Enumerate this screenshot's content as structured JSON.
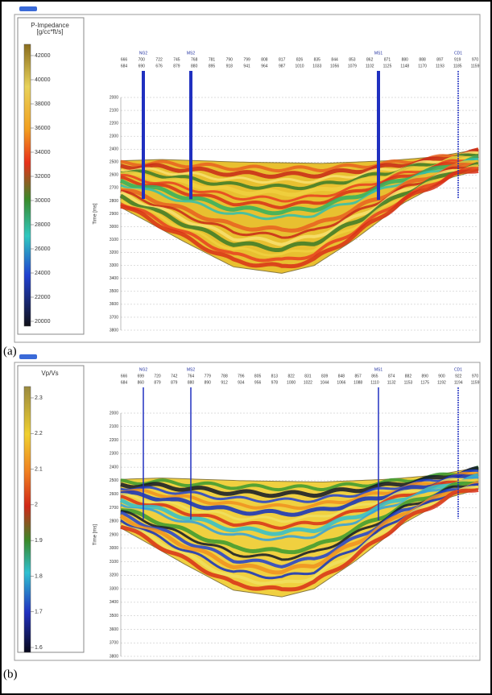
{
  "panels": [
    {
      "label": "(a)",
      "colorbar_title": "P-Impedance",
      "colorbar_unit": "[g/cc*ft/s]",
      "colorbar_ticks": [
        "42000",
        "40000",
        "38000",
        "36000",
        "34000",
        "32000",
        "30000",
        "28000",
        "26000",
        "24000",
        "22000",
        "20000"
      ],
      "time_axis_label": "Time [ms]",
      "time_ticks": [
        "2000",
        "2100",
        "2200",
        "2300",
        "2400",
        "2500",
        "2600",
        "2700",
        "2800",
        "2900",
        "3000",
        "3100",
        "3200",
        "3300",
        "3400",
        "3500",
        "3600",
        "3700",
        "3800"
      ],
      "wells": [
        "NG2",
        "MS2",
        "MS1",
        "CD1"
      ],
      "trace_row1": [
        "666",
        "700",
        "722",
        "745",
        "768",
        "781",
        "790",
        "799",
        "808",
        "817",
        "826",
        "835",
        "844",
        "853",
        "862",
        "871",
        "880",
        "888",
        "897",
        "919",
        "970"
      ],
      "trace_row2": [
        "684",
        "690",
        "676",
        "879",
        "880",
        "895",
        "918",
        "941",
        "964",
        "987",
        "1010",
        "1033",
        "1056",
        "1079",
        "1102",
        "1125",
        "1148",
        "1170",
        "1193",
        "1185",
        "1159"
      ]
    },
    {
      "label": "(b)",
      "colorbar_title": "Vp/Vs",
      "colorbar_unit": null,
      "colorbar_ticks": [
        "2.3",
        "2.2",
        "2.1",
        "2",
        "1.9",
        "1.8",
        "1.7",
        "1.6"
      ],
      "time_axis_label": "Time [ms]",
      "time_ticks": [
        "2000",
        "2100",
        "2200",
        "2300",
        "2400",
        "2500",
        "2600",
        "2700",
        "2800",
        "2900",
        "3000",
        "3100",
        "3200",
        "3300",
        "3400",
        "3500",
        "3600",
        "3700",
        "3800"
      ],
      "wells": [
        "NG2",
        "MS2",
        "MS1",
        "CD1"
      ],
      "trace_row1": [
        "666",
        "699",
        "720",
        "742",
        "764",
        "779",
        "788",
        "796",
        "805",
        "813",
        "822",
        "831",
        "839",
        "848",
        "857",
        "865",
        "874",
        "882",
        "890",
        "900",
        "922",
        "970"
      ],
      "trace_row2": [
        "684",
        "860",
        "879",
        "879",
        "880",
        "890",
        "912",
        "934",
        "956",
        "978",
        "1000",
        "1022",
        "1044",
        "1066",
        "1088",
        "1110",
        "1132",
        "1153",
        "1175",
        "1192",
        "1194",
        "1159"
      ]
    }
  ]
}
